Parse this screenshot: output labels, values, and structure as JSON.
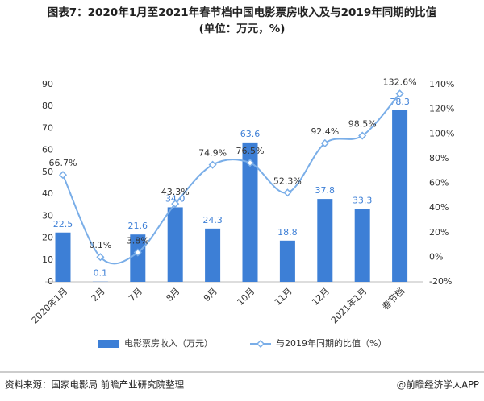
{
  "chart_data": {
    "type": "bar-line",
    "title": "图表7：2020年1月至2021年春节档中国电影票房收入及与2019年同期的比值",
    "subtitle": "(单位：万元，%)",
    "categories": [
      "2020年1月",
      "2月",
      "7月",
      "8月",
      "9月",
      "10月",
      "11月",
      "12月",
      "2021年1月",
      "春节档"
    ],
    "series": [
      {
        "name": "电影票房收入（万元）",
        "color": "#3d7fd6",
        "type": "bar",
        "values": [
          22.5,
          0.1,
          21.6,
          34.0,
          24.3,
          63.6,
          18.8,
          37.8,
          33.3,
          78.3
        ],
        "value_labels": [
          "22.5",
          "0.1",
          "21.6",
          "34.0",
          "24.3",
          "63.6",
          "18.8",
          "37.8",
          "33.3",
          "78.3"
        ]
      },
      {
        "name": "与2019年同期的比值（%）",
        "color": "#7aaee8",
        "type": "line",
        "axis": "y2",
        "values": [
          66.7,
          0.1,
          3.8,
          43.3,
          74.9,
          76.5,
          52.3,
          92.4,
          98.5,
          132.6
        ],
        "value_labels": [
          "66.7%",
          "0.1%",
          "3.8%",
          "43.3%",
          "74.9%",
          "76.5%",
          "52.3%",
          "92.4%",
          "98.5%",
          "132.6%"
        ]
      }
    ],
    "ylim": [
      0,
      90
    ],
    "yticks": [
      0,
      10,
      20,
      30,
      40,
      50,
      60,
      70,
      80,
      90
    ],
    "y2lim": [
      -20,
      140
    ],
    "y2ticks": [
      {
        "value": -20,
        "label": "-20%"
      },
      {
        "value": 0,
        "label": "0%"
      },
      {
        "value": 20,
        "label": "20%"
      },
      {
        "value": 40,
        "label": "40%"
      },
      {
        "value": 60,
        "label": "60%"
      },
      {
        "value": 80,
        "label": "80%"
      },
      {
        "value": 100,
        "label": "100%"
      },
      {
        "value": 120,
        "label": "120%"
      },
      {
        "value": 140,
        "label": "140%"
      }
    ],
    "source": "资料来源：国家电影局 前瞻产业研究院整理",
    "credit": "@前瞻经济学人APP"
  }
}
